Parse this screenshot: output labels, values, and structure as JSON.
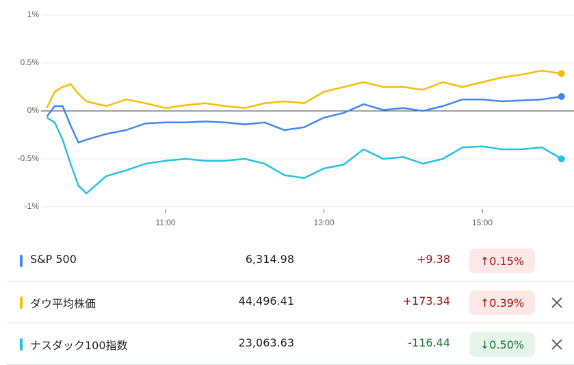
{
  "chart_data": {
    "type": "line",
    "x": [
      9.5,
      9.6,
      9.7,
      9.8,
      9.9,
      10.0,
      10.25,
      10.5,
      10.75,
      11,
      11.25,
      11.5,
      11.75,
      12,
      12.25,
      12.5,
      12.75,
      13,
      13.25,
      13.5,
      13.75,
      14,
      14.25,
      14.5,
      14.75,
      15,
      15.25,
      15.5,
      15.75,
      16
    ],
    "series": [
      {
        "name": "S&P 500",
        "color": "#4285f4",
        "values": [
          -0.06,
          0.05,
          0.05,
          -0.15,
          -0.33,
          -0.3,
          -0.24,
          -0.2,
          -0.13,
          -0.12,
          -0.12,
          -0.11,
          -0.12,
          -0.14,
          -0.12,
          -0.2,
          -0.17,
          -0.07,
          -0.02,
          0.07,
          0.01,
          0.03,
          0,
          0.05,
          0.12,
          0.12,
          0.1,
          0.11,
          0.12,
          0.15
        ]
      },
      {
        "name": "ダウ平均株価",
        "color": "#fbbc04",
        "values": [
          0.03,
          0.2,
          0.25,
          0.28,
          0.18,
          0.1,
          0.05,
          0.12,
          0.08,
          0.03,
          0.06,
          0.08,
          0.05,
          0.03,
          0.08,
          0.1,
          0.08,
          0.2,
          0.25,
          0.3,
          0.25,
          0.25,
          0.22,
          0.3,
          0.25,
          0.3,
          0.35,
          0.38,
          0.42,
          0.39
        ]
      },
      {
        "name": "ナスダック100指数",
        "color": "#24c1e0",
        "values": [
          -0.07,
          -0.12,
          -0.3,
          -0.55,
          -0.78,
          -0.86,
          -0.68,
          -0.62,
          -0.55,
          -0.52,
          -0.5,
          -0.52,
          -0.52,
          -0.5,
          -0.55,
          -0.67,
          -0.7,
          -0.6,
          -0.56,
          -0.4,
          -0.5,
          -0.48,
          -0.55,
          -0.5,
          -0.38,
          -0.37,
          -0.4,
          -0.4,
          -0.38,
          -0.5
        ]
      }
    ],
    "xlim": [
      9.5,
      16
    ],
    "xticks": [
      {
        "value": 11,
        "label": "11:00"
      },
      {
        "value": 13,
        "label": "13:00"
      },
      {
        "value": 15,
        "label": "15:00"
      }
    ],
    "ylim": [
      -1,
      1
    ],
    "yticks": [
      {
        "value": 1,
        "label": "1%"
      },
      {
        "value": 0.5,
        "label": "0.5%"
      },
      {
        "value": 0,
        "label": "0%"
      },
      {
        "value": -0.5,
        "label": "-0.5%"
      },
      {
        "value": -1,
        "label": "-1%"
      }
    ],
    "grid": true
  },
  "table": {
    "rows": [
      {
        "price": "6,314.98",
        "change": "+9.38",
        "change_percent": "0.15%"
      },
      {
        "price": "44,496.41",
        "change": "+173.34",
        "change_percent": "0.39%"
      },
      {
        "price": "23,063.63",
        "change": "-116.44",
        "change_percent": "0.50%"
      }
    ]
  }
}
